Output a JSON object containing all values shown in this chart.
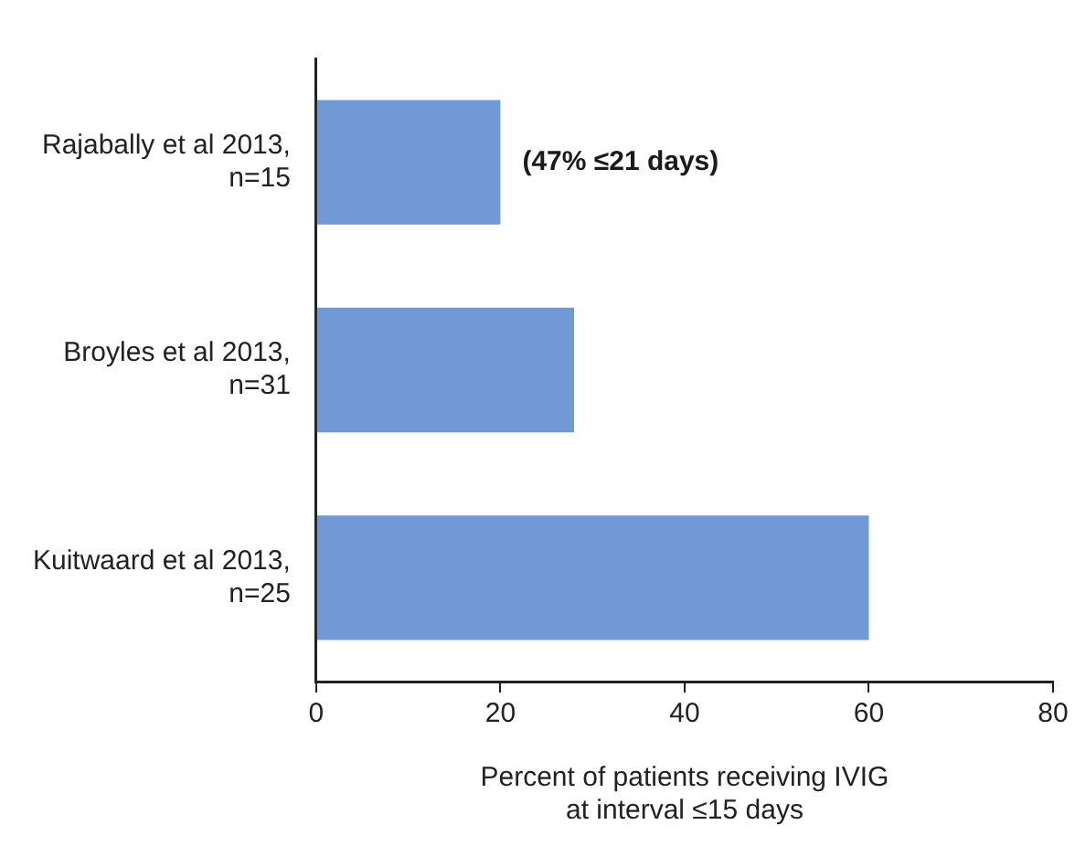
{
  "chart_data": {
    "type": "bar",
    "orientation": "horizontal",
    "categories": [
      "Rajabally et al 2013,\nn=15",
      "Broyles et al 2013,\nn=31",
      "Kuitwaard et al 2013,\nn=25"
    ],
    "values": [
      20,
      28,
      60
    ],
    "color": "#7099d6",
    "xlabel": "Percent of patients receiving IVIG\nat interval ≤15 days",
    "xlim": [
      0,
      80
    ],
    "xticks": [
      0,
      20,
      40,
      60,
      80
    ],
    "annotations": [
      "(47% ≤21 days)"
    ],
    "grid": false,
    "legend": false
  }
}
